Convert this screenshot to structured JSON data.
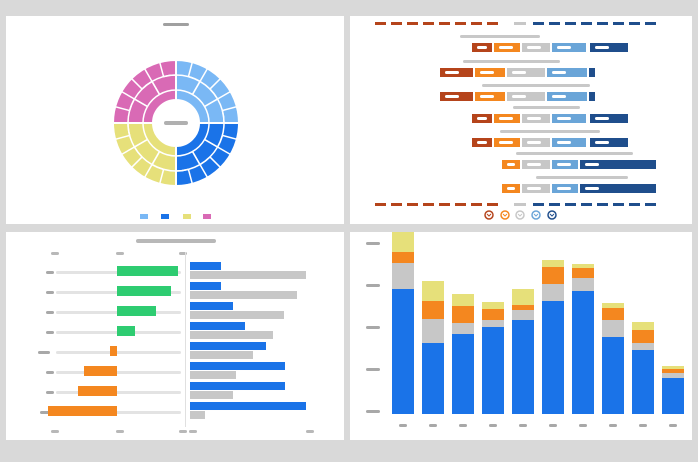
{
  "colors": {
    "blue": "#1a73e8",
    "dark_blue": "#1f4e8c",
    "light_blue": "#7ab8f5",
    "mid_blue": "#6aa5d8",
    "orange": "#f4871f",
    "dark_orange": "#b5441b",
    "yellow": "#e6e07a",
    "gray": "#c7c7c7",
    "green": "#2ecc71",
    "pink": "#d96ab5"
  },
  "sunburst": {
    "segments": [
      {
        "name": "blue-light",
        "color": "#7ab8f5",
        "share": 0.25
      },
      {
        "name": "blue-dark",
        "color": "#1a73e8",
        "share": 0.25
      },
      {
        "name": "yellow",
        "color": "#e6e07a",
        "share": 0.25
      },
      {
        "name": "pink",
        "color": "#d96ab5",
        "share": 0.25
      }
    ],
    "legend_icons": [
      "square-icon",
      "square-icon",
      "square-icon",
      "square-icon"
    ]
  },
  "gantt": {
    "rows": 8,
    "legend_icons": [
      "badge-icon",
      "badge-icon",
      "badge-icon",
      "badge-icon",
      "badge-icon"
    ]
  },
  "diverging": {
    "left_values": [
      0.55,
      0.48,
      0.35,
      0.16,
      -0.06,
      -0.3,
      -0.35,
      -0.62
    ],
    "right_blue": [
      0.25,
      0.25,
      0.35,
      0.45,
      0.62,
      0.78,
      0.78,
      0.95
    ],
    "right_gray": [
      0.95,
      0.88,
      0.77,
      0.68,
      0.52,
      0.38,
      0.35,
      0.12
    ]
  },
  "stacked": {
    "categories": [
      "",
      "",
      "",
      "",
      "",
      "",
      "",
      "",
      "",
      ""
    ],
    "series": [
      {
        "color": "#1a73e8",
        "values": [
          0.89,
          0.51,
          0.57,
          0.62,
          0.67,
          0.81,
          0.88,
          0.55,
          0.46,
          0.26
        ]
      },
      {
        "color": "#c7c7c7",
        "values": [
          0.19,
          0.17,
          0.08,
          0.05,
          0.07,
          0.12,
          0.09,
          0.12,
          0.05,
          0.03
        ]
      },
      {
        "color": "#f4871f",
        "values": [
          0.08,
          0.13,
          0.12,
          0.08,
          0.04,
          0.12,
          0.07,
          0.09,
          0.09,
          0.03
        ]
      },
      {
        "color": "#e6e07a",
        "values": [
          0.22,
          0.14,
          0.09,
          0.05,
          0.11,
          0.05,
          0.03,
          0.03,
          0.06,
          0.02
        ]
      }
    ]
  }
}
